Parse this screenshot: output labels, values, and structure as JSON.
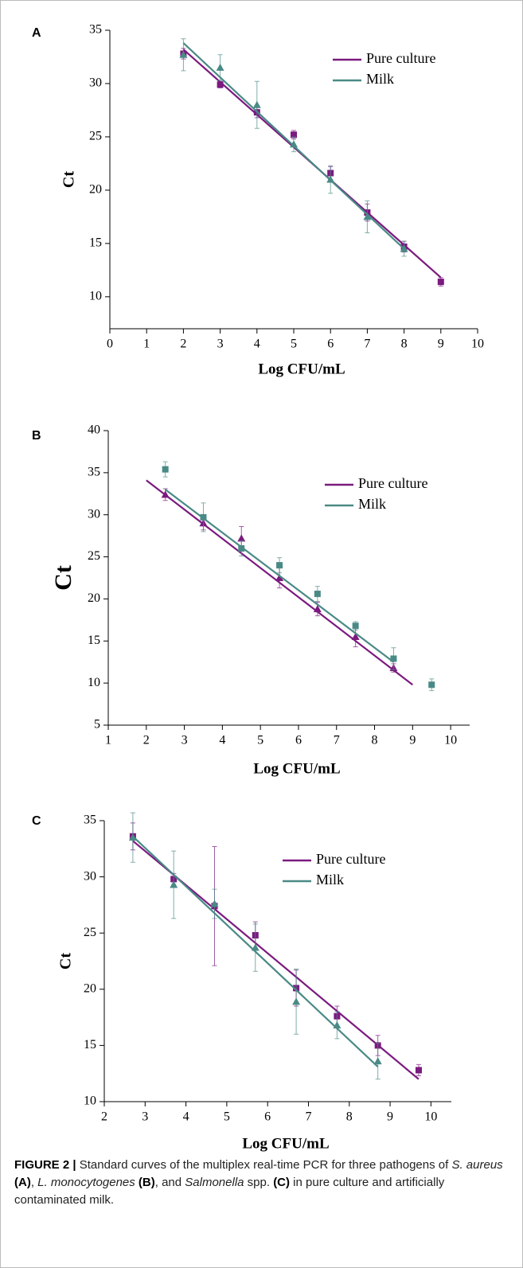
{
  "chart_data": [
    {
      "type": "scatter",
      "panel": "A",
      "xlabel": "Log CFU/mL",
      "ylabel": "Ct",
      "xlim": [
        0,
        10
      ],
      "ylim": [
        7,
        35
      ],
      "xticks": [
        0,
        1,
        2,
        3,
        4,
        5,
        6,
        7,
        8,
        9,
        10
      ],
      "yticks": [
        10,
        15,
        20,
        25,
        30,
        35
      ],
      "series": [
        {
          "name": "Pure culture",
          "color": "#7b1a7f",
          "marker": "square",
          "x": [
            2,
            3,
            4,
            5,
            6,
            7,
            8,
            9
          ],
          "values": [
            32.8,
            29.9,
            27.3,
            25.2,
            21.6,
            17.9,
            14.7,
            11.4
          ],
          "errors": [
            0.5,
            0.3,
            0.5,
            0.4,
            0.6,
            0.8,
            0.5,
            0.4
          ],
          "fit": {
            "x": [
              2,
              9
            ],
            "values": [
              33.2,
              11.8
            ]
          }
        },
        {
          "name": "Milk",
          "color": "#4a8a86",
          "marker": "triangle",
          "x": [
            2,
            3,
            4,
            5,
            6,
            7,
            8
          ],
          "values": [
            32.7,
            31.5,
            28.0,
            24.3,
            21.0,
            17.5,
            14.5
          ],
          "errors": [
            1.5,
            1.2,
            2.2,
            0.7,
            1.3,
            1.5,
            0.7
          ],
          "fit": {
            "x": [
              2,
              8
            ],
            "values": [
              33.8,
              14.5
            ]
          }
        }
      ]
    },
    {
      "type": "scatter",
      "panel": "B",
      "xlabel": "Log CFU/mL",
      "ylabel": "Ct",
      "xlim": [
        1,
        10.5
      ],
      "ylim": [
        5,
        40
      ],
      "xticks": [
        1,
        2,
        3,
        4,
        5,
        6,
        7,
        8,
        9,
        10
      ],
      "yticks": [
        5,
        10,
        15,
        20,
        25,
        30,
        35,
        40
      ],
      "series": [
        {
          "name": "Pure culture",
          "color": "#7b1a7f",
          "marker": "triangle",
          "x": [
            2.5,
            3.5,
            4.5,
            5.5,
            6.5,
            7.5,
            8.5
          ],
          "values": [
            32.4,
            29.0,
            27.2,
            22.5,
            18.8,
            15.5,
            11.8
          ],
          "errors": [
            0.7,
            0.8,
            1.4,
            1.2,
            0.8,
            1.2,
            0.5
          ],
          "fit": {
            "x": [
              2,
              9
            ],
            "values": [
              34.1,
              9.8
            ]
          }
        },
        {
          "name": "Milk",
          "color": "#4a8a86",
          "marker": "square",
          "x": [
            2.5,
            3.5,
            4.5,
            5.5,
            6.5,
            7.5,
            8.5,
            9.5
          ],
          "values": [
            35.4,
            29.7,
            26.0,
            24.0,
            20.6,
            16.8,
            12.9,
            9.8
          ],
          "errors": [
            0.9,
            1.7,
            0.9,
            0.9,
            0.9,
            0.5,
            1.3,
            0.7
          ],
          "fit": {
            "x": [
              2.5,
              8.5
            ],
            "values": [
              33.0,
              12.5
            ]
          }
        }
      ]
    },
    {
      "type": "scatter",
      "panel": "C",
      "xlabel": "Log CFU/mL",
      "ylabel": "Ct",
      "xlim": [
        2,
        10.5
      ],
      "ylim": [
        10,
        35
      ],
      "xticks": [
        2,
        3,
        4,
        5,
        6,
        7,
        8,
        9,
        10
      ],
      "yticks": [
        10,
        15,
        20,
        25,
        30,
        35
      ],
      "series": [
        {
          "name": "Pure culture",
          "color": "#7b1a7f",
          "marker": "square",
          "x": [
            2.7,
            3.7,
            4.7,
            5.7,
            6.7,
            7.7,
            8.7,
            9.7
          ],
          "values": [
            33.6,
            29.8,
            27.4,
            24.8,
            20.1,
            17.6,
            15.0,
            12.8
          ],
          "errors": [
            1.2,
            0.5,
            5.3,
            1.2,
            1.6,
            0.9,
            0.9,
            0.5
          ],
          "fit": {
            "x": [
              2.7,
              9.7
            ],
            "values": [
              33.2,
              12.0
            ]
          }
        },
        {
          "name": "Milk",
          "color": "#4a8a86",
          "marker": "triangle",
          "x": [
            2.7,
            3.7,
            4.7,
            5.7,
            6.7,
            7.7,
            8.7
          ],
          "values": [
            33.5,
            29.3,
            27.6,
            23.7,
            18.9,
            16.8,
            13.6
          ],
          "errors": [
            2.2,
            3.0,
            1.3,
            2.1,
            2.9,
            1.2,
            1.6
          ],
          "fit": {
            "x": [
              2.7,
              8.7
            ],
            "values": [
              33.6,
              13.1
            ]
          }
        }
      ]
    }
  ],
  "caption": [
    {
      "text": "FIGURE 2 | ",
      "style": "bold"
    },
    {
      "text": "Standard curves of the multiplex real-time PCR for three pathogens of ",
      "style": "normal"
    },
    {
      "text": "S. aureus",
      "style": "italic"
    },
    {
      "text": " ",
      "style": "normal"
    },
    {
      "text": "(A)",
      "style": "bold"
    },
    {
      "text": ", ",
      "style": "normal"
    },
    {
      "text": "L. monocytogenes",
      "style": "italic"
    },
    {
      "text": " ",
      "style": "normal"
    },
    {
      "text": "(B)",
      "style": "bold"
    },
    {
      "text": ", and ",
      "style": "normal"
    },
    {
      "text": "Salmonella",
      "style": "italic"
    },
    {
      "text": " spp. ",
      "style": "normal"
    },
    {
      "text": "(C)",
      "style": "bold"
    },
    {
      "text": " in pure culture and artificially contaminated milk.",
      "style": "normal"
    }
  ]
}
